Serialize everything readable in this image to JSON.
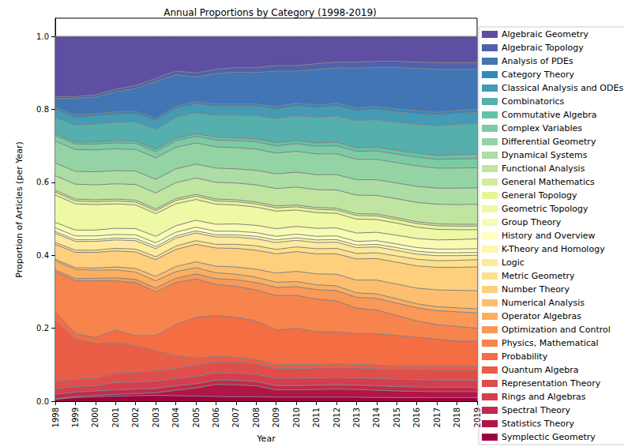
{
  "chart_data": {
    "type": "area",
    "title": "Annual Proportions by Category (1998-2019)",
    "x_label": "Year",
    "y_label": "Proportion of Articles (per Year)",
    "categories": [
      "1998",
      "1999",
      "2000",
      "2001",
      "2002",
      "2003",
      "2004",
      "2005",
      "2006",
      "2007",
      "2008",
      "2009",
      "2010",
      "2011",
      "2012",
      "2013",
      "2014",
      "2015",
      "2016",
      "2017",
      "2018",
      "2019"
    ],
    "ylim": [
      0,
      1.05
    ],
    "yticks": [
      {
        "value": 0,
        "label": "0.0"
      },
      {
        "value": 0.2,
        "label": "0.2"
      },
      {
        "value": 0.4,
        "label": "0.4"
      },
      {
        "value": 0.6,
        "label": "0.6"
      },
      {
        "value": 0.8,
        "label": "0.8"
      },
      {
        "value": 1.0,
        "label": "1.0"
      }
    ],
    "stacked": true,
    "grid": false,
    "legend": "right",
    "series": [
      {
        "name": "Algebraic Geometry",
        "color": "#5e4fa2",
        "values": [
          0.165,
          0.165,
          0.16,
          0.145,
          0.135,
          0.115,
          0.095,
          0.1,
          0.09,
          0.085,
          0.085,
          0.08,
          0.08,
          0.075,
          0.07,
          0.07,
          0.068,
          0.068,
          0.07,
          0.072,
          0.072,
          0.072
        ]
      },
      {
        "name": "Algebraic Topology",
        "color": "#4f62ab",
        "values": [
          0.005,
          0.005,
          0.006,
          0.007,
          0.008,
          0.009,
          0.01,
          0.011,
          0.012,
          0.013,
          0.014,
          0.015,
          0.015,
          0.016,
          0.016,
          0.017,
          0.017,
          0.017,
          0.018,
          0.018,
          0.018,
          0.018
        ]
      },
      {
        "name": "Analysis of PDEs",
        "color": "#4175b4",
        "values": [
          0.025,
          0.046,
          0.046,
          0.055,
          0.062,
          0.101,
          0.087,
          0.068,
          0.083,
          0.087,
          0.086,
          0.098,
          0.088,
          0.097,
          0.097,
          0.109,
          0.107,
          0.114,
          0.116,
          0.118,
          0.113,
          0.11
        ]
      },
      {
        "name": "Category Theory",
        "color": "#3288bd",
        "values": [
          0.007,
          0.007,
          0.007,
          0.007,
          0.007,
          0.007,
          0.007,
          0.007,
          0.007,
          0.007,
          0.007,
          0.007,
          0.008,
          0.008,
          0.008,
          0.008,
          0.008,
          0.008,
          0.008,
          0.008,
          0.008,
          0.008
        ]
      },
      {
        "name": "Classical Analysis and ODEs",
        "color": "#439bb5",
        "values": [
          0.02,
          0.02,
          0.021,
          0.021,
          0.022,
          0.022,
          0.023,
          0.023,
          0.024,
          0.024,
          0.025,
          0.025,
          0.026,
          0.026,
          0.027,
          0.027,
          0.028,
          0.028,
          0.029,
          0.029,
          0.03,
          0.03
        ]
      },
      {
        "name": "Combinatorics",
        "color": "#55afad",
        "values": [
          0.045,
          0.047,
          0.049,
          0.051,
          0.053,
          0.055,
          0.057,
          0.058,
          0.06,
          0.062,
          0.064,
          0.066,
          0.068,
          0.07,
          0.072,
          0.074,
          0.076,
          0.077,
          0.079,
          0.081,
          0.083,
          0.085
        ]
      },
      {
        "name": "Commutative Algebra",
        "color": "#66c2a5",
        "values": [
          0.005,
          0.005,
          0.006,
          0.006,
          0.006,
          0.007,
          0.007,
          0.007,
          0.008,
          0.008,
          0.008,
          0.009,
          0.009,
          0.009,
          0.01,
          0.01,
          0.01,
          0.011,
          0.011,
          0.011,
          0.012,
          0.012
        ]
      },
      {
        "name": "Complex Variables",
        "color": "#7dcba5",
        "values": [
          0.015,
          0.015,
          0.016,
          0.016,
          0.017,
          0.017,
          0.018,
          0.018,
          0.019,
          0.019,
          0.02,
          0.02,
          0.021,
          0.021,
          0.022,
          0.022,
          0.023,
          0.023,
          0.024,
          0.024,
          0.025,
          0.025
        ]
      },
      {
        "name": "Differential Geometry",
        "color": "#94d4a4",
        "values": [
          0.06,
          0.06,
          0.06,
          0.06,
          0.059,
          0.059,
          0.059,
          0.058,
          0.058,
          0.058,
          0.058,
          0.057,
          0.057,
          0.057,
          0.057,
          0.056,
          0.056,
          0.056,
          0.056,
          0.055,
          0.055,
          0.055
        ]
      },
      {
        "name": "Dynamical Systems",
        "color": "#abdda4",
        "values": [
          0.035,
          0.035,
          0.036,
          0.036,
          0.037,
          0.037,
          0.038,
          0.038,
          0.039,
          0.039,
          0.04,
          0.04,
          0.041,
          0.041,
          0.042,
          0.042,
          0.043,
          0.043,
          0.044,
          0.044,
          0.045,
          0.045
        ]
      },
      {
        "name": "Functional Analysis",
        "color": "#bfe5a0",
        "values": [
          0.04,
          0.041,
          0.041,
          0.042,
          0.043,
          0.044,
          0.044,
          0.045,
          0.046,
          0.046,
          0.047,
          0.048,
          0.049,
          0.049,
          0.05,
          0.051,
          0.051,
          0.052,
          0.053,
          0.054,
          0.054,
          0.055
        ]
      },
      {
        "name": "General Mathematics",
        "color": "#d2ed9c",
        "values": [
          0.005,
          0.005,
          0.005,
          0.005,
          0.005,
          0.005,
          0.005,
          0.005,
          0.005,
          0.005,
          0.005,
          0.005,
          0.005,
          0.005,
          0.005,
          0.005,
          0.005,
          0.005,
          0.005,
          0.005,
          0.005,
          0.005
        ]
      },
      {
        "name": "General Topology",
        "color": "#e6f598",
        "values": [
          0.008,
          0.008,
          0.008,
          0.008,
          0.008,
          0.008,
          0.009,
          0.009,
          0.009,
          0.009,
          0.009,
          0.009,
          0.009,
          0.009,
          0.009,
          0.01,
          0.01,
          0.01,
          0.01,
          0.01,
          0.01,
          0.01
        ]
      },
      {
        "name": "Geometric Topology",
        "color": "#eef8a5",
        "values": [
          0.075,
          0.072,
          0.07,
          0.067,
          0.065,
          0.062,
          0.06,
          0.057,
          0.055,
          0.052,
          0.05,
          0.048,
          0.045,
          0.043,
          0.04,
          0.038,
          0.035,
          0.033,
          0.031,
          0.029,
          0.027,
          0.025
        ]
      },
      {
        "name": "Group Theory",
        "color": "#f7fcb2",
        "values": [
          0.015,
          0.016,
          0.016,
          0.017,
          0.017,
          0.018,
          0.018,
          0.019,
          0.019,
          0.02,
          0.02,
          0.021,
          0.021,
          0.022,
          0.022,
          0.023,
          0.023,
          0.024,
          0.025,
          0.025,
          0.026,
          0.027
        ]
      },
      {
        "name": "History and Overview",
        "color": "#ffffbf",
        "values": [
          0.01,
          0.01,
          0.01,
          0.01,
          0.01,
          0.01,
          0.01,
          0.01,
          0.01,
          0.01,
          0.01,
          0.01,
          0.01,
          0.01,
          0.01,
          0.01,
          0.01,
          0.01,
          0.01,
          0.01,
          0.01,
          0.01
        ]
      },
      {
        "name": "K-Theory and Homology",
        "color": "#fff5ae",
        "values": [
          0.005,
          0.005,
          0.005,
          0.005,
          0.006,
          0.006,
          0.006,
          0.006,
          0.006,
          0.006,
          0.007,
          0.007,
          0.007,
          0.007,
          0.007,
          0.007,
          0.007,
          0.008,
          0.008,
          0.008,
          0.008,
          0.008
        ]
      },
      {
        "name": "Logic",
        "color": "#feea9c",
        "values": [
          0.025,
          0.024,
          0.024,
          0.023,
          0.023,
          0.022,
          0.022,
          0.021,
          0.02,
          0.02,
          0.019,
          0.019,
          0.018,
          0.017,
          0.017,
          0.016,
          0.016,
          0.015,
          0.014,
          0.014,
          0.013,
          0.012
        ]
      },
      {
        "name": "Metric Geometry",
        "color": "#fee08b",
        "values": [
          0.005,
          0.006,
          0.006,
          0.007,
          0.008,
          0.008,
          0.009,
          0.01,
          0.01,
          0.011,
          0.012,
          0.012,
          0.013,
          0.014,
          0.015,
          0.015,
          0.016,
          0.017,
          0.018,
          0.018,
          0.019,
          0.02
        ]
      },
      {
        "name": "Number Theory",
        "color": "#fecf7d",
        "values": [
          0.041,
          0.042,
          0.043,
          0.044,
          0.045,
          0.046,
          0.047,
          0.048,
          0.05,
          0.051,
          0.052,
          0.053,
          0.054,
          0.055,
          0.056,
          0.058,
          0.059,
          0.06,
          0.061,
          0.062,
          0.063,
          0.065
        ]
      },
      {
        "name": "Numerical Analysis",
        "color": "#fdbf6f",
        "values": [
          0.004,
          0.005,
          0.006,
          0.008,
          0.01,
          0.012,
          0.014,
          0.016,
          0.018,
          0.02,
          0.022,
          0.025,
          0.028,
          0.03,
          0.032,
          0.035,
          0.038,
          0.04,
          0.043,
          0.046,
          0.048,
          0.05
        ]
      },
      {
        "name": "Operator Algebras",
        "color": "#fdae61",
        "values": [
          0.025,
          0.025,
          0.022,
          0.022,
          0.02,
          0.02,
          0.018,
          0.017,
          0.016,
          0.015,
          0.015,
          0.014,
          0.014,
          0.013,
          0.013,
          0.012,
          0.012,
          0.012,
          0.011,
          0.011,
          0.011,
          0.011
        ]
      },
      {
        "name": "Optimization and Control",
        "color": "#fa9857",
        "values": [
          0.005,
          0.006,
          0.007,
          0.008,
          0.009,
          0.01,
          0.012,
          0.014,
          0.016,
          0.018,
          0.02,
          0.022,
          0.024,
          0.026,
          0.028,
          0.03,
          0.032,
          0.034,
          0.036,
          0.038,
          0.04,
          0.042
        ]
      },
      {
        "name": "Physics, Mathematical",
        "color": "#f7834d",
        "values": [
          0.11,
          0.145,
          0.155,
          0.135,
          0.145,
          0.12,
          0.115,
          0.105,
          0.085,
          0.085,
          0.085,
          0.095,
          0.09,
          0.09,
          0.085,
          0.07,
          0.065,
          0.055,
          0.045,
          0.04,
          0.04,
          0.035
        ]
      },
      {
        "name": "Probability",
        "color": "#f46d43",
        "values": [
          0.025,
          0.015,
          0.017,
          0.034,
          0.028,
          0.042,
          0.085,
          0.112,
          0.112,
          0.11,
          0.106,
          0.094,
          0.099,
          0.089,
          0.088,
          0.084,
          0.086,
          0.083,
          0.078,
          0.074,
          0.069,
          0.069
        ]
      },
      {
        "name": "Quantum Algebra",
        "color": "#ea5d47",
        "values": [
          0.166,
          0.11,
          0.095,
          0.085,
          0.072,
          0.055,
          0.035,
          0.02,
          0.015,
          0.013,
          0.012,
          0.011,
          0.011,
          0.01,
          0.01,
          0.01,
          0.01,
          0.01,
          0.01,
          0.01,
          0.01,
          0.01
        ]
      },
      {
        "name": "Representation Theory",
        "color": "#df4e4b",
        "values": [
          0.02,
          0.02,
          0.02,
          0.025,
          0.027,
          0.028,
          0.028,
          0.03,
          0.03,
          0.03,
          0.028,
          0.027,
          0.027,
          0.027,
          0.027,
          0.027,
          0.027,
          0.027,
          0.028,
          0.028,
          0.028,
          0.028
        ]
      },
      {
        "name": "Rings and Algebras",
        "color": "#d53e4f",
        "values": [
          0.015,
          0.015,
          0.015,
          0.02,
          0.02,
          0.02,
          0.02,
          0.02,
          0.02,
          0.02,
          0.02,
          0.02,
          0.02,
          0.02,
          0.02,
          0.02,
          0.02,
          0.02,
          0.02,
          0.02,
          0.02,
          0.02
        ]
      },
      {
        "name": "Spectral Theory",
        "color": "#c32a4b",
        "values": [
          0.012,
          0.012,
          0.012,
          0.012,
          0.012,
          0.012,
          0.012,
          0.012,
          0.012,
          0.012,
          0.012,
          0.012,
          0.012,
          0.012,
          0.012,
          0.012,
          0.012,
          0.012,
          0.012,
          0.012,
          0.012,
          0.012
        ]
      },
      {
        "name": "Statistics Theory",
        "color": "#b01546",
        "values": [
          0.002,
          0.003,
          0.004,
          0.005,
          0.006,
          0.007,
          0.015,
          0.022,
          0.033,
          0.033,
          0.03,
          0.02,
          0.02,
          0.021,
          0.022,
          0.021,
          0.02,
          0.018,
          0.017,
          0.016,
          0.016,
          0.016
        ]
      },
      {
        "name": "Symplectic Geometry",
        "color": "#9e0142",
        "values": [
          0.005,
          0.01,
          0.012,
          0.014,
          0.015,
          0.016,
          0.015,
          0.014,
          0.013,
          0.012,
          0.012,
          0.011,
          0.011,
          0.011,
          0.011,
          0.011,
          0.01,
          0.01,
          0.01,
          0.01,
          0.01,
          0.01
        ]
      }
    ]
  }
}
